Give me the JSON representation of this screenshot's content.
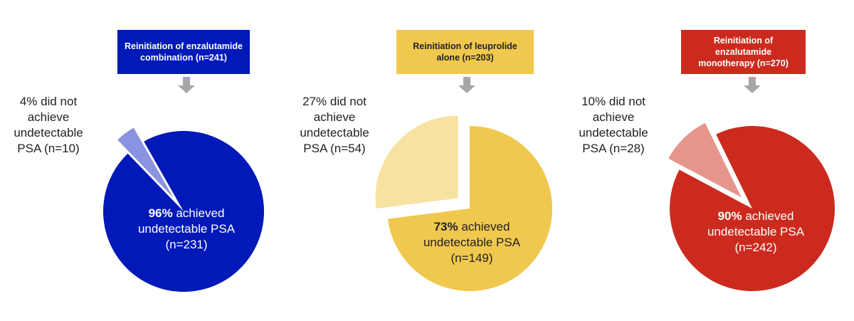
{
  "chart_data": [
    {
      "type": "pie",
      "title": "Reinitiation of enzalutamide combination (n=241)",
      "categories": [
        "achieved undetectable PSA (n=231)",
        "did not achieve undetectable PSA (n=10)"
      ],
      "values": [
        96,
        4
      ],
      "value_labels": [
        "96%",
        "4%"
      ],
      "colors": [
        "#0019b8",
        "#8a93e0"
      ]
    },
    {
      "type": "pie",
      "title": "Reinitiation of leuprolide alone (n=203)",
      "categories": [
        "achieved undetectable PSA (n=149)",
        "did not achieve undetectable PSA (n=54)"
      ],
      "values": [
        73,
        27
      ],
      "value_labels": [
        "73%",
        "27%"
      ],
      "colors": [
        "#f0c84e",
        "#f7e2a2"
      ]
    },
    {
      "type": "pie",
      "title": "Reinitiation of enzalutamide monotherapy (n=270)",
      "categories": [
        "achieved undetectable PSA (n=242)",
        "did not achieve undetectable PSA (n=28)"
      ],
      "values": [
        90,
        10
      ],
      "value_labels": [
        "90%",
        "10%"
      ],
      "colors": [
        "#cc2a1e",
        "#e6958c"
      ]
    }
  ]
}
